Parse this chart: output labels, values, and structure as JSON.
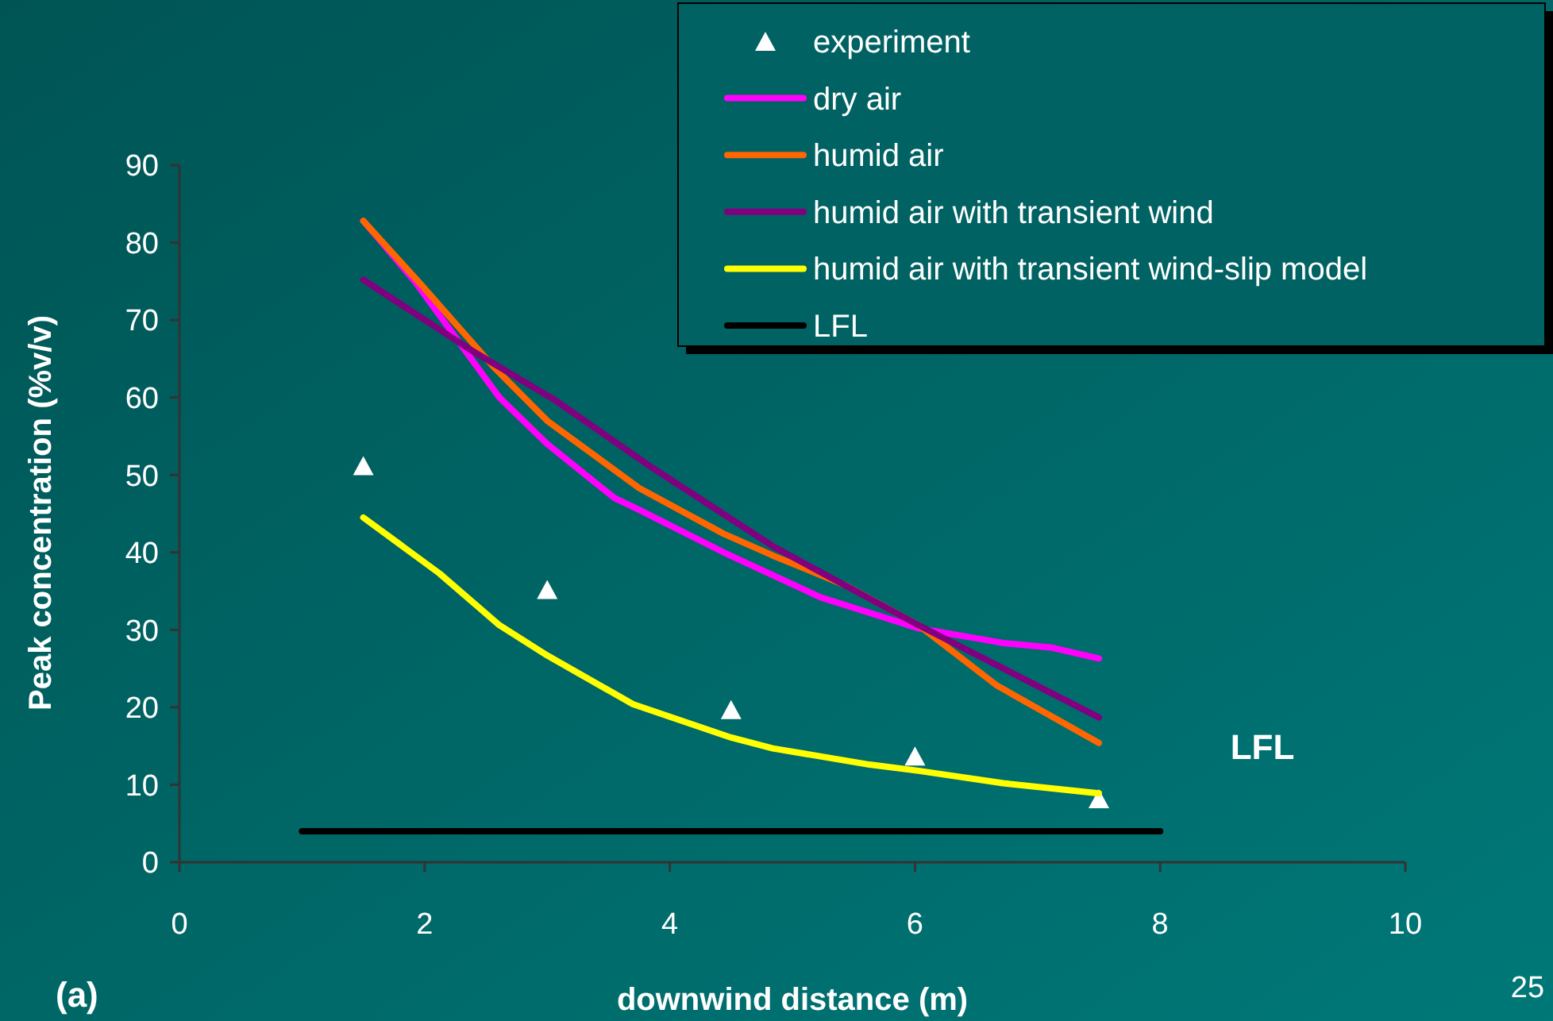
{
  "chart_data": {
    "type": "line",
    "xlabel": "downwind distance (m)",
    "ylabel": "Peak concentration (%v/v)",
    "xlim": [
      0,
      10
    ],
    "ylim": [
      0,
      90
    ],
    "xticks": [
      0,
      2,
      4,
      6,
      8,
      10
    ],
    "yticks": [
      0,
      10,
      20,
      30,
      40,
      50,
      60,
      70,
      80,
      90
    ],
    "grid": false,
    "legend": "top right",
    "annotations": [
      "LFL",
      "(a)",
      "25"
    ],
    "series": [
      {
        "name": "experiment",
        "type": "scatter",
        "marker": "triangle",
        "color": "#ffffff",
        "x": [
          1.5,
          3,
          4.5,
          6,
          7.5
        ],
        "values": [
          51,
          35,
          19.5,
          13.5,
          8
        ]
      },
      {
        "name": "dry air",
        "color": "#ff00ff",
        "x": [
          1.5,
          1.92,
          2.61,
          3.0,
          3.55,
          3.75,
          4.44,
          5.23,
          6.03,
          6.72,
          7.12,
          7.5
        ],
        "values": [
          82.8,
          75,
          60,
          54,
          47,
          45.5,
          40,
          34.2,
          30.2,
          28.3,
          27.7,
          26.3
        ]
      },
      {
        "name": "humid air",
        "color": "#ff6600",
        "x": [
          1.5,
          1.97,
          2.56,
          3.0,
          3.75,
          4.44,
          4.84,
          5.44,
          6.03,
          6.67,
          7.5
        ],
        "values": [
          82.8,
          74.6,
          64,
          57,
          48.3,
          42.4,
          39.6,
          35.7,
          30.6,
          22.8,
          15.4
        ]
      },
      {
        "name": "humid air with transient wind",
        "color": "#800080",
        "x": [
          1.5,
          2.36,
          3.06,
          3.85,
          4.84,
          6.03,
          7.5
        ],
        "values": [
          75.2,
          66.3,
          59.7,
          51,
          40.8,
          30.6,
          18.7
        ]
      },
      {
        "name": "humid air with transient wind-slip model",
        "color": "#ffff00",
        "x": [
          1.5,
          2.12,
          2.61,
          3.0,
          3.7,
          4.5,
          4.84,
          5.63,
          6.03,
          6.72,
          7.5
        ],
        "values": [
          44.5,
          37.3,
          30.6,
          26.7,
          20.4,
          16.1,
          14.7,
          12.6,
          11.8,
          10.2,
          8.9
        ]
      },
      {
        "name": "LFL",
        "color": "#000000",
        "x": [
          1,
          8
        ],
        "values": [
          4,
          4
        ]
      }
    ]
  }
}
